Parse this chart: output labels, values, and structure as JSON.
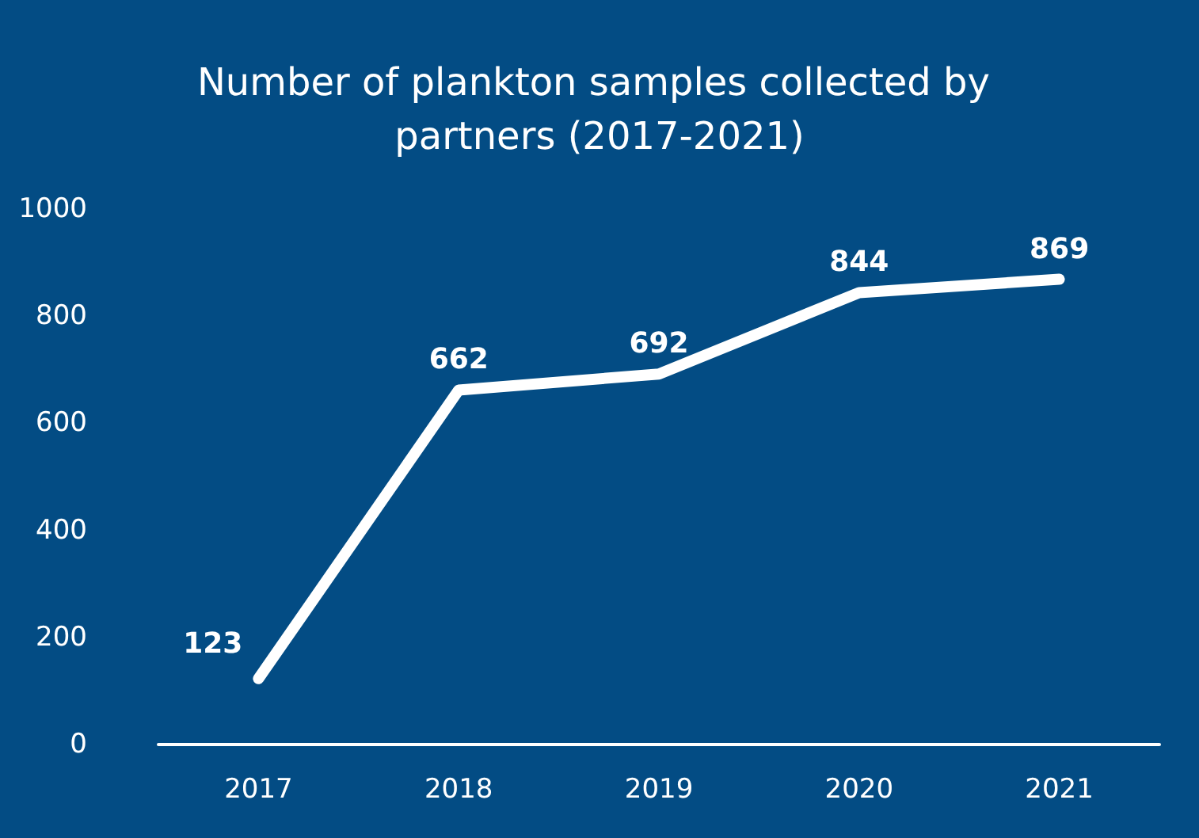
{
  "chart_data": {
    "type": "line",
    "title": "Number of plankton samples collected by partners (2017-2021)",
    "categories": [
      "2017",
      "2018",
      "2019",
      "2020",
      "2021"
    ],
    "values": [
      123,
      662,
      692,
      844,
      869
    ],
    "color": "#ffffff",
    "ylim": [
      0,
      1000
    ],
    "yticks": [
      0,
      200,
      400,
      600,
      800,
      1000
    ],
    "data_labels": true
  }
}
